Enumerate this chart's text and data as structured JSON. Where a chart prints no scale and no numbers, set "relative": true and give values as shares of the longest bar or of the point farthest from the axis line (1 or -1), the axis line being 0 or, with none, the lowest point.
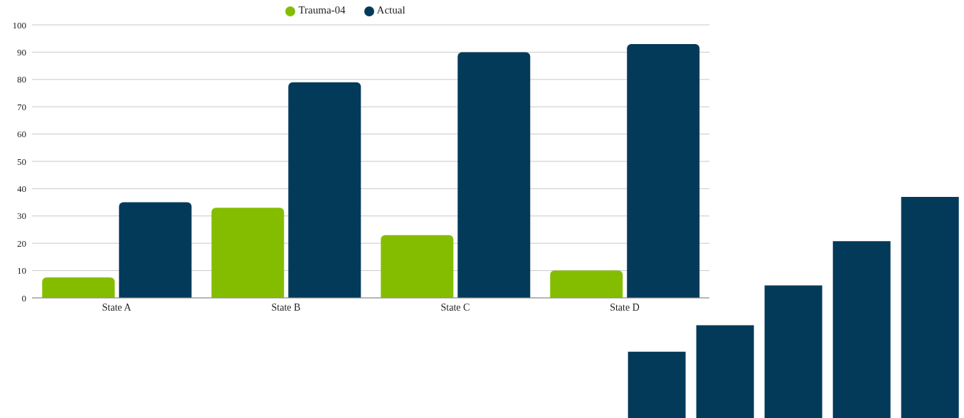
{
  "chart_data": [
    {
      "type": "bar",
      "categories": [
        "State A",
        "State B",
        "State C",
        "State D"
      ],
      "series": [
        {
          "name": "Trauma-04",
          "color": "#84bd00",
          "values": [
            7.5,
            33,
            23,
            10
          ]
        },
        {
          "name": "Actual",
          "color": "#033a5a",
          "values": [
            35,
            79,
            90,
            93
          ]
        }
      ],
      "ylim": [
        0,
        100
      ],
      "yticks": [
        0,
        10,
        20,
        30,
        40,
        50,
        60,
        70,
        80,
        90,
        100
      ],
      "grid": "y",
      "legend": "top"
    },
    {
      "type": "bar",
      "relative": true,
      "categories": [
        null,
        null,
        null,
        null,
        null
      ],
      "values": [
        0.3,
        0.42,
        0.6,
        0.8,
        1
      ],
      "color": "#033a5a"
    }
  ]
}
